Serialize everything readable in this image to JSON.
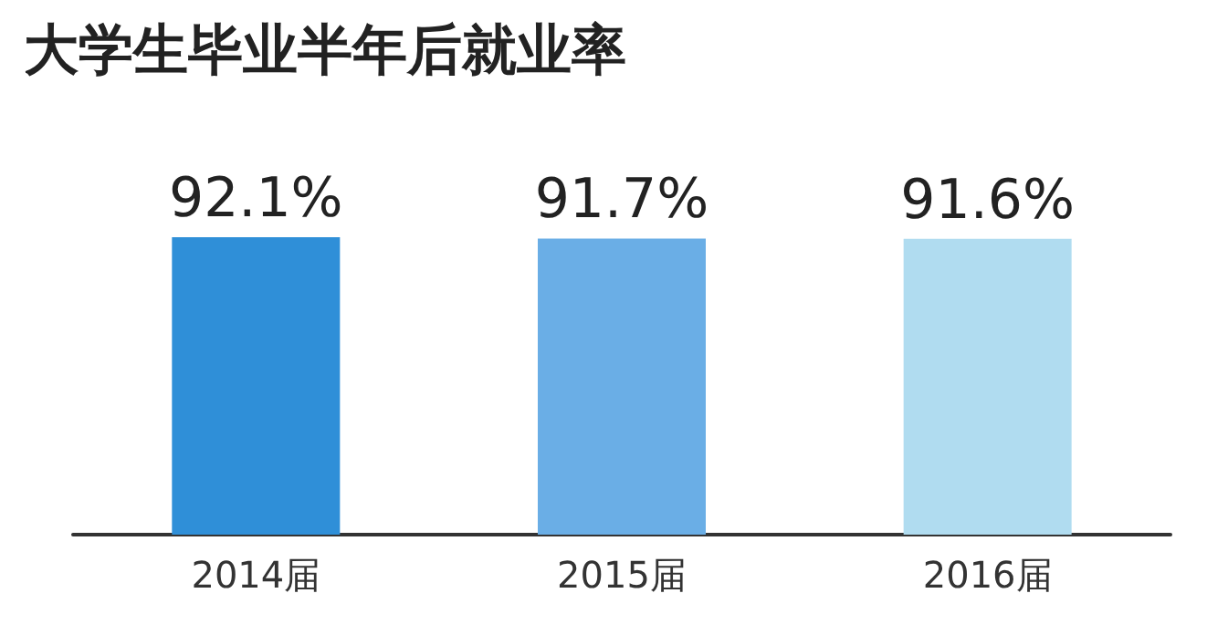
{
  "chart_data": {
    "type": "bar",
    "title": "大学生毕业半年后就业率",
    "categories": [
      "2014届",
      "2015届",
      "2016届"
    ],
    "values": [
      92.1,
      91.7,
      91.6
    ],
    "colors": [
      "#2f8fd8",
      "#6aaee6",
      "#b0dcf0"
    ],
    "value_labels": [
      "92.1%",
      "91.7%",
      "91.6%"
    ]
  }
}
